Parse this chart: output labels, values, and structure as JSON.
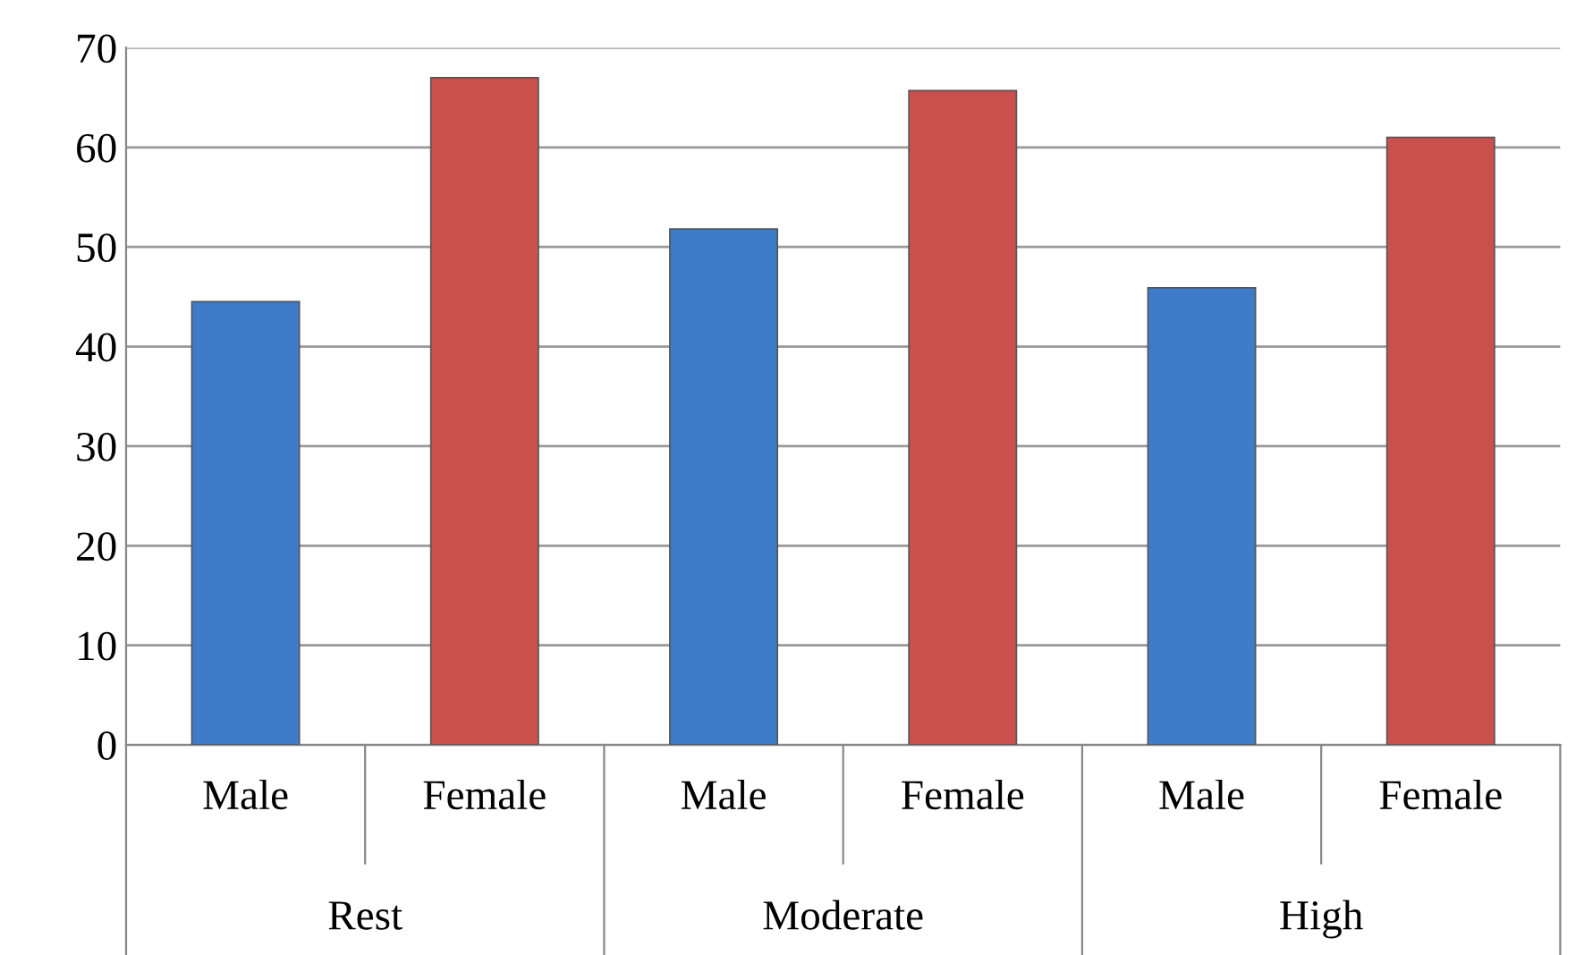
{
  "chart_data": {
    "type": "bar",
    "categories": [
      "Male",
      "Female",
      "Male",
      "Female",
      "Male",
      "Female"
    ],
    "values": [
      44.5,
      67,
      51.8,
      65.7,
      45.9,
      61
    ],
    "colors": [
      "#3e7cc9",
      "#c9504d",
      "#3e7cc9",
      "#c9504d",
      "#3e7cc9",
      "#c9504d"
    ],
    "annotations": [
      "Rest",
      "Moderate",
      "High"
    ],
    "ylim": [
      0,
      70
    ],
    "yticks": [
      0,
      10,
      20,
      30,
      40,
      50,
      60,
      70
    ],
    "grid": "y"
  }
}
